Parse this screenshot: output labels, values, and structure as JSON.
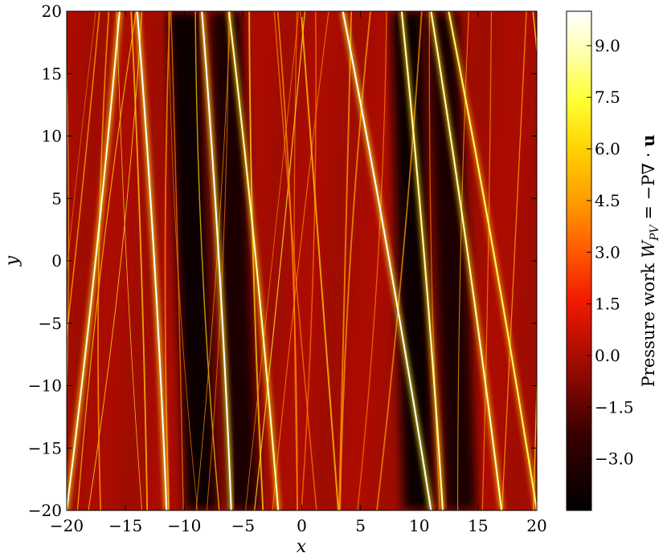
{
  "chart_data": {
    "type": "heatmap",
    "title": "",
    "xlabel": "x",
    "ylabel": "y",
    "xlim": [
      -20,
      20
    ],
    "ylim": [
      -20,
      20
    ],
    "x_ticks": [
      -20,
      -15,
      -10,
      -5,
      0,
      5,
      10,
      15,
      20
    ],
    "y_ticks": [
      -20,
      -15,
      -10,
      -5,
      0,
      5,
      10,
      15,
      20
    ],
    "x_tick_labels": [
      "−20",
      "−15",
      "−10",
      "−5",
      "0",
      "5",
      "10",
      "15",
      "20"
    ],
    "y_tick_labels": [
      "−20",
      "−15",
      "−10",
      "−5",
      "0",
      "5",
      "10",
      "15",
      "20"
    ],
    "colorbar": {
      "label": "Pressure work W_PV = −P∇ · u",
      "label_parts": {
        "prefix": "Pressure work ",
        "symbol": "W",
        "subscript": "PV",
        "expression": " = −P∇ · ",
        "vector": "u"
      },
      "range": [
        -4.5,
        10.0
      ],
      "ticks": [
        -3.0,
        -1.5,
        0.0,
        1.5,
        3.0,
        4.5,
        6.0,
        7.5,
        9.0
      ],
      "tick_labels": [
        "−3.0",
        "−1.5",
        "0.0",
        "1.5",
        "3.0",
        "4.5",
        "6.0",
        "7.5",
        "9.0"
      ],
      "colormap": "hot"
    },
    "background_value": 0.0,
    "features": {
      "description_kind": "oblique filament bands",
      "bright_filaments": [
        {
          "x_top": -15.5,
          "x_bottom": -20.0,
          "value": 9.5
        },
        {
          "x_top": -14.0,
          "x_bottom": -11.5,
          "value": 10.0
        },
        {
          "x_top": -8.5,
          "x_bottom": -6.0,
          "value": 10.0
        },
        {
          "x_top": -6.2,
          "x_bottom": -2.0,
          "value": 9.0
        },
        {
          "x_top": 3.5,
          "x_bottom": 11.0,
          "value": 10.0
        },
        {
          "x_top": 8.5,
          "x_bottom": 12.0,
          "value": 9.0
        },
        {
          "x_top": 11.0,
          "x_bottom": 17.0,
          "value": 9.0
        },
        {
          "x_top": 12.5,
          "x_bottom": 20.0,
          "value": 8.0
        }
      ],
      "dark_bands": [
        {
          "x_top": -10.0,
          "x_bottom": -8.5,
          "value": -4.0
        },
        {
          "x_top": -6.5,
          "x_bottom": -5.0,
          "value": -3.5
        },
        {
          "x_top": 9.0,
          "x_bottom": 10.0,
          "value": -4.0
        },
        {
          "x_top": 12.0,
          "x_bottom": 13.5,
          "value": -3.5
        }
      ]
    }
  }
}
